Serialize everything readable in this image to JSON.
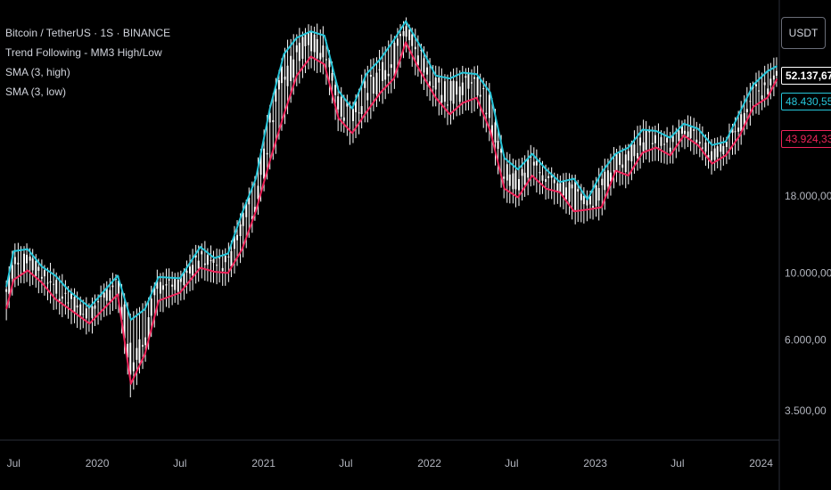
{
  "legend": {
    "symbol": "Bitcoin / TetherUS · 1S · BINANCE",
    "indicator": "Trend Following - MM3 High/Low",
    "sma_high": "SMA (3, high)",
    "sma_low": "SMA (3, low)"
  },
  "currency_button": "USDT",
  "price_tags": {
    "last": "52.137,67",
    "sma_high_value": "48.430,55",
    "sma_low_value": "43.924,33"
  },
  "colors": {
    "background": "#000000",
    "candle": "#ffffff",
    "sma_high": "#26c6da",
    "sma_low": "#f0245a",
    "axis_text": "#b2b5be"
  },
  "chart_data": {
    "type": "line",
    "title": "Bitcoin / TetherUS · 1S · BINANCE",
    "y_scale": "log",
    "y_ticks": [
      "18.000,00",
      "10.000,00",
      "6.000,00",
      "3.500,00"
    ],
    "y_tick_values": [
      18000,
      10000,
      6000,
      3500
    ],
    "x_ticks": [
      "Jul",
      "2020",
      "Jul",
      "2021",
      "Jul",
      "2022",
      "Jul",
      "2023",
      "Jul",
      "2024"
    ],
    "x_tick_dates": [
      "2019-07-01",
      "2020-01-01",
      "2020-07-01",
      "2021-01-01",
      "2021-07-01",
      "2022-01-01",
      "2022-07-01",
      "2023-01-01",
      "2023-07-01",
      "2024-01-01"
    ],
    "x_range": [
      "2019-06-01",
      "2024-02-10"
    ],
    "ylim": [
      2800,
      80000
    ],
    "series": [
      {
        "name": "SMA (3, high)",
        "color": "#26c6da",
        "x": [
          "2019-06-15",
          "2019-07-01",
          "2019-08-01",
          "2019-09-01",
          "2019-10-01",
          "2019-11-01",
          "2019-12-15",
          "2020-02-15",
          "2020-03-15",
          "2020-04-15",
          "2020-05-15",
          "2020-07-01",
          "2020-08-15",
          "2020-09-15",
          "2020-10-15",
          "2020-11-15",
          "2020-12-15",
          "2021-01-15",
          "2021-02-15",
          "2021-03-15",
          "2021-04-15",
          "2021-05-15",
          "2021-06-15",
          "2021-07-15",
          "2021-08-15",
          "2021-09-15",
          "2021-10-15",
          "2021-11-10",
          "2021-12-10",
          "2022-01-15",
          "2022-02-15",
          "2022-03-15",
          "2022-04-15",
          "2022-05-15",
          "2022-06-15",
          "2022-07-15",
          "2022-08-15",
          "2022-09-15",
          "2022-10-15",
          "2022-11-15",
          "2022-12-15",
          "2023-01-15",
          "2023-02-15",
          "2023-03-15",
          "2023-04-15",
          "2023-05-15",
          "2023-06-15",
          "2023-07-15",
          "2023-08-15",
          "2023-09-15",
          "2023-10-15",
          "2023-11-15",
          "2023-12-15",
          "2024-01-15",
          "2024-02-05"
        ],
        "values": [
          9000,
          11800,
          12000,
          10500,
          9800,
          8700,
          7700,
          9800,
          7000,
          7600,
          9700,
          9600,
          12200,
          11200,
          11600,
          15800,
          20500,
          35000,
          53000,
          60000,
          63000,
          61000,
          40000,
          35000,
          45500,
          51000,
          59000,
          68000,
          57000,
          45000,
          44000,
          46000,
          45500,
          39500,
          24000,
          22000,
          24800,
          22000,
          20000,
          20500,
          17500,
          21500,
          24800,
          26000,
          29800,
          29500,
          28000,
          31200,
          30000,
          26500,
          27200,
          34000,
          42000,
          46500,
          48430
        ]
      },
      {
        "name": "SMA (3, low)",
        "color": "#f0245a",
        "x": [
          "2019-06-15",
          "2019-07-01",
          "2019-08-01",
          "2019-09-01",
          "2019-10-01",
          "2019-11-01",
          "2019-12-15",
          "2020-02-15",
          "2020-03-15",
          "2020-04-15",
          "2020-05-15",
          "2020-07-01",
          "2020-08-15",
          "2020-09-15",
          "2020-10-15",
          "2020-11-15",
          "2020-12-15",
          "2021-01-15",
          "2021-02-15",
          "2021-03-15",
          "2021-04-15",
          "2021-05-15",
          "2021-06-15",
          "2021-07-15",
          "2021-08-15",
          "2021-09-15",
          "2021-10-15",
          "2021-11-10",
          "2021-12-10",
          "2022-01-15",
          "2022-02-15",
          "2022-03-15",
          "2022-04-15",
          "2022-05-15",
          "2022-06-15",
          "2022-07-15",
          "2022-08-15",
          "2022-09-15",
          "2022-10-15",
          "2022-11-15",
          "2022-12-15",
          "2023-01-15",
          "2023-02-15",
          "2023-03-15",
          "2023-04-15",
          "2023-05-15",
          "2023-06-15",
          "2023-07-15",
          "2023-08-15",
          "2023-09-15",
          "2023-10-15",
          "2023-11-15",
          "2023-12-15",
          "2024-01-15",
          "2024-02-05"
        ],
        "values": [
          7600,
          9500,
          10200,
          9300,
          8200,
          7600,
          6800,
          8500,
          4300,
          5400,
          8100,
          8600,
          10400,
          10100,
          10000,
          12000,
          16000,
          23500,
          33500,
          45000,
          52000,
          49000,
          32500,
          29000,
          34000,
          39500,
          44000,
          58000,
          47000,
          38000,
          33500,
          36500,
          38000,
          29500,
          19000,
          17800,
          21000,
          19000,
          18500,
          16000,
          16200,
          16500,
          21800,
          21000,
          25000,
          26000,
          24500,
          28500,
          26500,
          23000,
          24500,
          28500,
          35500,
          38000,
          43924
        ]
      }
    ],
    "candles_approx_close": [
      8500,
      11500,
      10800,
      9200,
      8200,
      7300,
      9500,
      6000,
      7500,
      9300,
      9300,
      11300,
      11000,
      11600,
      14000,
      19000,
      29000,
      47000,
      57000,
      60000,
      56000,
      36000,
      34000,
      42000,
      47000,
      43000,
      61000,
      57000,
      47000,
      38500,
      43000,
      45000,
      38000,
      30000,
      19500,
      21000,
      20000,
      19300,
      20500,
      17000,
      16800,
      23000,
      23000,
      28500,
      29300,
      27000,
      30500,
      29500,
      26000,
      26900,
      34500,
      37700,
      42300,
      42600,
      52137
    ]
  }
}
